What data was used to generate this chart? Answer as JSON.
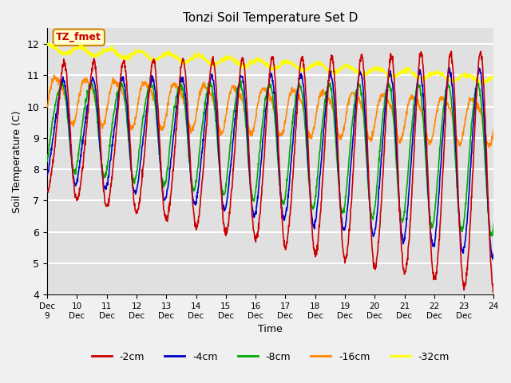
{
  "title": "Tonzi Soil Temperature Set D",
  "xlabel": "Time",
  "ylabel": "Soil Temperature (C)",
  "ylim": [
    4.0,
    12.5
  ],
  "yticks": [
    4.0,
    5.0,
    6.0,
    7.0,
    8.0,
    9.0,
    10.0,
    11.0,
    12.0
  ],
  "xlim": [
    0,
    360
  ],
  "colors": {
    "-2cm": "#cc0000",
    "-4cm": "#0000cc",
    "-8cm": "#00aa00",
    "-16cm": "#ff8800",
    "-32cm": "#ffff00"
  },
  "legend_labels": [
    "-2cm",
    "-4cm",
    "-8cm",
    "-16cm",
    "-32cm"
  ],
  "xtick_labels": [
    "Dec 9",
    "Dec 10",
    "Dec 11",
    "Dec 12",
    "Dec 13",
    "Dec 14",
    "Dec 15",
    "Dec 16",
    "Dec 17",
    "Dec 18",
    "Dec 19",
    "Dec 20",
    "Dec 21",
    "Dec 22",
    "Dec 23",
    "Dec 24"
  ],
  "xtick_positions": [
    0,
    24,
    48,
    72,
    96,
    120,
    144,
    168,
    192,
    216,
    240,
    264,
    288,
    312,
    336,
    360
  ],
  "label_box_text": "TZ_fmet",
  "background_color": "#e0e0e0",
  "grid_color": "#ffffff",
  "fig_background": "#f0f0f0"
}
